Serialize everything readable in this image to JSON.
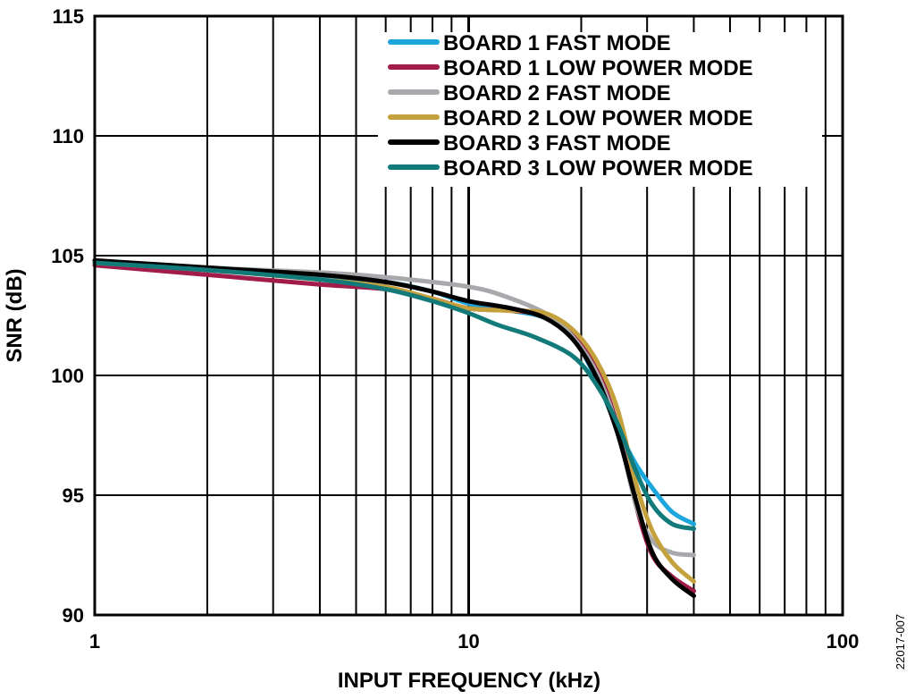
{
  "figure_id": "22017-007",
  "chart_data": {
    "type": "line",
    "xlabel": "INPUT FREQUENCY (kHz)",
    "ylabel": "SNR (dB)",
    "x_scale": "log",
    "xlim": [
      1,
      100
    ],
    "ylim": [
      90,
      115
    ],
    "x_ticks": [
      1,
      10,
      100
    ],
    "x_tick_labels": [
      "1",
      "10",
      "100"
    ],
    "y_ticks": [
      90,
      95,
      100,
      105,
      110,
      115
    ],
    "y_tick_labels": [
      "90",
      "95",
      "100",
      "105",
      "110",
      "115"
    ],
    "grid": true,
    "legend_position": "top-right",
    "series": [
      {
        "name": "BOARD 1 FAST MODE",
        "color": "#1ca6dc",
        "points": [
          [
            1,
            104.7
          ],
          [
            2,
            104.4
          ],
          [
            4,
            104.1
          ],
          [
            6,
            103.9
          ],
          [
            8,
            103.5
          ],
          [
            10,
            103.0
          ],
          [
            13,
            102.7
          ],
          [
            16,
            102.4
          ],
          [
            19,
            101.6
          ],
          [
            22,
            99.8
          ],
          [
            25,
            97.8
          ],
          [
            28,
            96.3
          ],
          [
            31,
            95.3
          ],
          [
            35,
            94.3
          ],
          [
            40,
            93.8
          ]
        ]
      },
      {
        "name": "BOARD 1 LOW POWER MODE",
        "color": "#a11c4b",
        "points": [
          [
            1,
            104.6
          ],
          [
            2,
            104.2
          ],
          [
            4,
            103.8
          ],
          [
            6,
            103.6
          ],
          [
            8,
            103.2
          ],
          [
            10,
            102.8
          ],
          [
            13,
            102.7
          ],
          [
            16,
            102.5
          ],
          [
            19,
            101.8
          ],
          [
            22,
            100.3
          ],
          [
            25,
            97.9
          ],
          [
            28,
            94.6
          ],
          [
            31,
            92.5
          ],
          [
            35,
            91.6
          ],
          [
            40,
            91.0
          ]
        ]
      },
      {
        "name": "BOARD 2 FAST MODE",
        "color": "#a7a9ac",
        "points": [
          [
            1,
            104.8
          ],
          [
            2,
            104.5
          ],
          [
            4,
            104.3
          ],
          [
            6,
            104.1
          ],
          [
            8,
            103.9
          ],
          [
            10,
            103.7
          ],
          [
            12,
            103.4
          ],
          [
            16,
            102.6
          ],
          [
            19,
            101.6
          ],
          [
            22,
            100.1
          ],
          [
            25,
            97.8
          ],
          [
            28,
            94.6
          ],
          [
            31,
            93.1
          ],
          [
            35,
            92.6
          ],
          [
            40,
            92.5
          ]
        ]
      },
      {
        "name": "BOARD 2 LOW POWER MODE",
        "color": "#c5a13e",
        "points": [
          [
            1,
            104.7
          ],
          [
            2,
            104.4
          ],
          [
            4,
            104.0
          ],
          [
            6,
            103.7
          ],
          [
            8,
            103.2
          ],
          [
            10,
            102.8
          ],
          [
            13,
            102.7
          ],
          [
            16,
            102.6
          ],
          [
            19,
            101.9
          ],
          [
            22,
            100.6
          ],
          [
            25,
            98.6
          ],
          [
            28,
            95.5
          ],
          [
            31,
            93.5
          ],
          [
            35,
            92.2
          ],
          [
            40,
            91.4
          ]
        ]
      },
      {
        "name": "BOARD 3 FAST MODE",
        "color": "#000000",
        "points": [
          [
            1,
            104.8
          ],
          [
            2,
            104.5
          ],
          [
            4,
            104.2
          ],
          [
            6,
            103.9
          ],
          [
            8,
            103.5
          ],
          [
            10,
            103.1
          ],
          [
            13,
            102.8
          ],
          [
            16,
            102.4
          ],
          [
            19,
            101.5
          ],
          [
            22,
            99.9
          ],
          [
            25,
            97.6
          ],
          [
            28,
            94.8
          ],
          [
            31,
            92.6
          ],
          [
            35,
            91.5
          ],
          [
            40,
            90.8
          ]
        ]
      },
      {
        "name": "BOARD 3 LOW POWER MODE",
        "color": "#137a7a",
        "points": [
          [
            1,
            104.7
          ],
          [
            2,
            104.4
          ],
          [
            4,
            104.0
          ],
          [
            6,
            103.6
          ],
          [
            8,
            103.1
          ],
          [
            10,
            102.6
          ],
          [
            12,
            102.1
          ],
          [
            15,
            101.6
          ],
          [
            19,
            100.8
          ],
          [
            22,
            99.6
          ],
          [
            25,
            98.0
          ],
          [
            28,
            96.0
          ],
          [
            31,
            94.6
          ],
          [
            35,
            93.8
          ],
          [
            40,
            93.6
          ]
        ]
      }
    ]
  }
}
